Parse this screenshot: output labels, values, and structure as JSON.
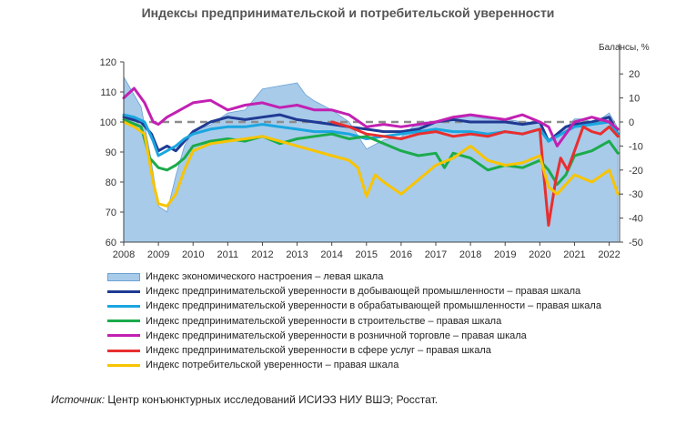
{
  "chart_data": {
    "type": "line",
    "title": "Индексы предпринимательской и потребительской уверенности",
    "left_axis": {
      "ylim": [
        60,
        120
      ],
      "ticks": [
        "60",
        "70",
        "80",
        "90",
        "100",
        "110",
        "120"
      ]
    },
    "right_axis": {
      "label": "Балансы, %",
      "ylim": [
        -50,
        25
      ],
      "ticks": [
        "-50",
        "-40",
        "-30",
        "-20",
        "-10",
        "0",
        "10",
        "20"
      ]
    },
    "x_axis": {
      "xlim": [
        2008,
        2022.3
      ],
      "ticks": [
        "2008",
        "2009",
        "2010",
        "2011",
        "2012",
        "2013",
        "2014",
        "2015",
        "2016",
        "2017",
        "2018",
        "2019",
        "2020",
        "2021",
        "2022"
      ]
    },
    "reference_line": {
      "axis": "right",
      "value": 0,
      "style": "dashed"
    },
    "series": [
      {
        "name": "Индекс экономического настроения – левая шкала",
        "type": "area",
        "axis": "left",
        "color": "#a8cbea",
        "x": [
          2008,
          2008.25,
          2008.5,
          2008.75,
          2009,
          2009.25,
          2009.5,
          2009.75,
          2010,
          2010.5,
          2011,
          2011.5,
          2012,
          2012.5,
          2013,
          2013.25,
          2013.5,
          2014,
          2014.5,
          2015,
          2015.5,
          2016,
          2016.5,
          2017,
          2017.5,
          2018,
          2018.5,
          2019,
          2019.5,
          2020,
          2020.25,
          2020.5,
          2020.75,
          2021,
          2021.25,
          2021.5,
          2021.75,
          2022,
          2022.25
        ],
        "values": [
          115,
          110,
          105,
          90,
          72,
          70,
          82,
          92,
          97,
          99,
          103,
          104,
          111,
          112,
          113,
          109,
          107,
          104,
          100,
          91,
          94,
          95,
          100,
          100,
          101,
          102,
          101,
          101,
          100,
          100,
          94,
          96,
          98,
          101,
          101,
          100,
          101,
          103,
          98
        ]
      },
      {
        "name": "Индекс предпринимательской уверенности в добывающей промышленности – правая шкала",
        "type": "line",
        "axis": "right",
        "color": "#1f3a93",
        "x": [
          2008,
          2008.5,
          2008.8,
          2009,
          2009.25,
          2009.5,
          2009.75,
          2010,
          2010.5,
          2011,
          2011.5,
          2012,
          2012.5,
          2013,
          2013.5,
          2014,
          2014.5,
          2015,
          2015.5,
          2016,
          2016.5,
          2017,
          2017.5,
          2018,
          2018.5,
          2019,
          2019.5,
          2020,
          2020.25,
          2020.5,
          2020.75,
          2021,
          2021.5,
          2022,
          2022.25
        ],
        "values": [
          2,
          0,
          -5,
          -12,
          -10,
          -12,
          -8,
          -4,
          0,
          2,
          1,
          2,
          3,
          1,
          0,
          -1,
          -2,
          -3,
          -4,
          -4,
          -3,
          0,
          1,
          0,
          0,
          0,
          -1,
          0,
          -8,
          -5,
          -2,
          -1,
          0,
          2,
          -5
        ]
      },
      {
        "name": "Индекс предпринимательской уверенности в обрабатывающей промышленности – правая шкала",
        "type": "line",
        "axis": "right",
        "color": "#1aa6e0",
        "x": [
          2008,
          2008.3,
          2008.6,
          2008.85,
          2009,
          2009.25,
          2009.5,
          2009.75,
          2010,
          2010.5,
          2011,
          2011.5,
          2012,
          2012.5,
          2013,
          2013.5,
          2014,
          2014.5,
          2015,
          2015.5,
          2016,
          2016.5,
          2017,
          2017.5,
          2018,
          2018.5,
          2019,
          2019.5,
          2020,
          2020.25,
          2020.5,
          2020.75,
          2021,
          2021.5,
          2022,
          2022.25
        ],
        "values": [
          3,
          2,
          0,
          -8,
          -14,
          -12,
          -10,
          -7,
          -5,
          -3,
          -2,
          -2,
          -1,
          -2,
          -3,
          -4,
          -4,
          -5,
          -7,
          -6,
          -5,
          -4,
          -3,
          -4,
          -4,
          -5,
          -4,
          -5,
          -3,
          -8,
          -6,
          -4,
          -2,
          -1,
          0,
          -5
        ]
      },
      {
        "name": "Индекс предпринимательской уверенности в строительстве – правая шкала",
        "type": "line",
        "axis": "right",
        "color": "#1bab4b",
        "x": [
          2008,
          2008.5,
          2008.75,
          2009,
          2009.25,
          2009.5,
          2009.75,
          2010,
          2010.5,
          2011,
          2011.5,
          2012,
          2012.5,
          2013,
          2013.5,
          2014,
          2014.5,
          2015,
          2015.5,
          2016,
          2016.5,
          2017,
          2017.25,
          2017.5,
          2018,
          2018.5,
          2019,
          2019.5,
          2020,
          2020.25,
          2020.5,
          2020.75,
          2021,
          2021.5,
          2022,
          2022.25
        ],
        "values": [
          1,
          -2,
          -15,
          -19,
          -20,
          -18,
          -15,
          -10,
          -8,
          -7,
          -8,
          -6,
          -9,
          -7,
          -6,
          -5,
          -7,
          -6,
          -9,
          -12,
          -14,
          -13,
          -19,
          -13,
          -15,
          -20,
          -18,
          -19,
          -16,
          -20,
          -26,
          -22,
          -14,
          -12,
          -8,
          -13
        ]
      },
      {
        "name": "Индекс предпринимательской уверенности в розничной торговле – правая шкала",
        "type": "line",
        "axis": "right",
        "color": "#c220b2",
        "x": [
          2008,
          2008.3,
          2008.6,
          2008.85,
          2009,
          2009.25,
          2009.5,
          2009.75,
          2010,
          2010.5,
          2011,
          2011.5,
          2012,
          2012.5,
          2013,
          2013.5,
          2014,
          2014.5,
          2015,
          2015.5,
          2016,
          2016.5,
          2017,
          2017.5,
          2018,
          2018.5,
          2019,
          2019.5,
          2020,
          2020.25,
          2020.5,
          2020.75,
          2021,
          2021.5,
          2022,
          2022.25
        ],
        "values": [
          10,
          14,
          8,
          0,
          -1,
          2,
          4,
          6,
          8,
          9,
          5,
          7,
          8,
          6,
          7,
          5,
          5,
          3,
          -2,
          -1,
          -2,
          -1,
          0,
          2,
          3,
          2,
          1,
          3,
          0,
          -2,
          -10,
          -5,
          0,
          2,
          0,
          -3
        ]
      },
      {
        "name": "Индекс предпринимательской уверенности в сфере услуг – правая шкала",
        "type": "line",
        "axis": "right",
        "color": "#e82f2f",
        "x": [
          2014,
          2014.5,
          2015,
          2015.5,
          2016,
          2016.5,
          2017,
          2017.5,
          2018,
          2018.5,
          2019,
          2019.5,
          2020,
          2020.1,
          2020.25,
          2020.45,
          2020.6,
          2020.8,
          2021,
          2021.25,
          2021.5,
          2021.75,
          2022,
          2022.25
        ],
        "values": [
          0,
          -2,
          -5,
          -6,
          -7,
          -5,
          -4,
          -6,
          -5,
          -6,
          -4,
          -5,
          -3,
          -20,
          -43,
          -25,
          -15,
          -20,
          -12,
          -2,
          -4,
          -5,
          -2,
          -6
        ]
      },
      {
        "name": "Индекс потребительской уверенности – правая шкала",
        "type": "line",
        "axis": "right",
        "color": "#f8c400",
        "x": [
          2008,
          2008.3,
          2008.6,
          2008.85,
          2009,
          2009.25,
          2009.5,
          2009.75,
          2010,
          2010.5,
          2011,
          2011.5,
          2012,
          2012.5,
          2013,
          2013.5,
          2014,
          2014.5,
          2014.75,
          2015,
          2015.25,
          2015.5,
          2016,
          2016.5,
          2017,
          2017.5,
          2018,
          2018.5,
          2019,
          2019.5,
          2020,
          2020.25,
          2020.5,
          2020.75,
          2021,
          2021.5,
          2022,
          2022.25
        ],
        "values": [
          0,
          -2,
          -5,
          -25,
          -34,
          -35,
          -30,
          -20,
          -12,
          -9,
          -8,
          -7,
          -6,
          -8,
          -10,
          -12,
          -14,
          -16,
          -19,
          -31,
          -22,
          -25,
          -30,
          -24,
          -18,
          -15,
          -10,
          -16,
          -18,
          -17,
          -14,
          -27,
          -30,
          -26,
          -22,
          -25,
          -20,
          -30
        ]
      }
    ]
  },
  "legend": {
    "items": [
      {
        "label": "Индекс экономического настроения – левая шкала",
        "color": "#a8cbea",
        "kind": "area"
      },
      {
        "label": "Индекс предпринимательской уверенности в добывающей промышленности – правая шкала",
        "color": "#1f3a93",
        "kind": "line"
      },
      {
        "label": "Индекс предпринимательской уверенности в обрабатывающей промышленности – правая шкала",
        "color": "#1aa6e0",
        "kind": "line"
      },
      {
        "label": "Индекс предпринимательской уверенности в строительстве – правая шкала",
        "color": "#1bab4b",
        "kind": "line"
      },
      {
        "label": "Индекс предпринимательской уверенности в розничной торговле – правая шкала",
        "color": "#c220b2",
        "kind": "line"
      },
      {
        "label": "Индекс предпринимательской уверенности в сфере услуг – правая шкала",
        "color": "#e82f2f",
        "kind": "line"
      },
      {
        "label": "Индекс потребительской  уверенности – правая шкала",
        "color": "#f8c400",
        "kind": "line"
      }
    ]
  },
  "source": {
    "label": "Источник:",
    "text": " Центр конъюнктурных исследований ИСИЭЗ НИУ ВШЭ; Росстат."
  }
}
